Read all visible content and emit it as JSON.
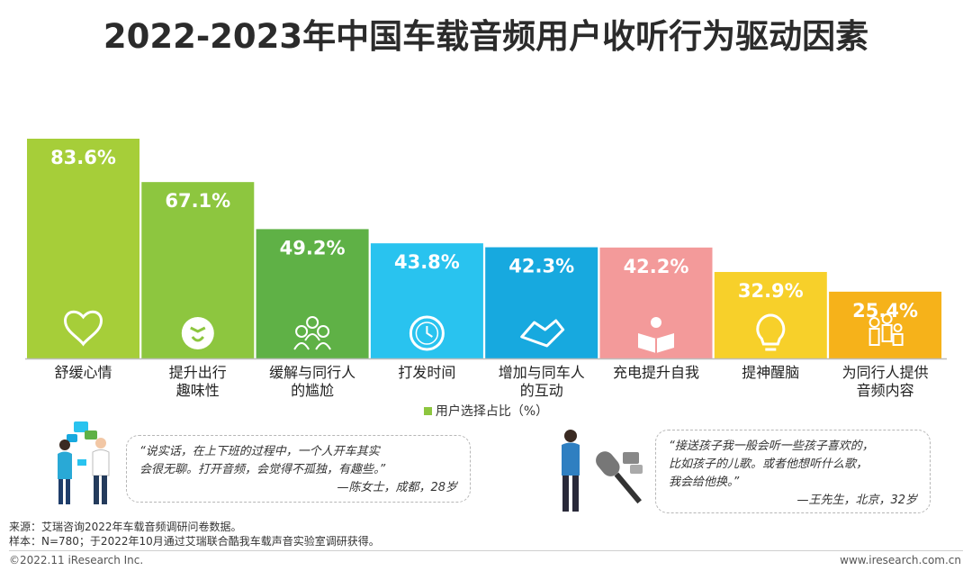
{
  "title": "2022-2023年中国车载音频用户收听行为驱动因素",
  "chart_data": {
    "type": "bar",
    "categories": [
      [
        "舒缓心情"
      ],
      [
        "提升出行",
        "趣味性"
      ],
      [
        "缓解与同行人",
        "的尴尬"
      ],
      [
        "打发时间"
      ],
      [
        "增加与同车人",
        "的互动"
      ],
      [
        "充电提升自我"
      ],
      [
        "提神醒脑"
      ],
      [
        "为同行人提供",
        "音频内容"
      ]
    ],
    "values": [
      83.6,
      67.1,
      49.2,
      43.8,
      42.3,
      42.2,
      32.9,
      25.4
    ],
    "value_labels": [
      "83.6%",
      "67.1%",
      "49.2%",
      "43.8%",
      "42.3%",
      "42.2%",
      "32.9%",
      "25.4%"
    ],
    "colors": [
      "#a6ce39",
      "#8dc63f",
      "#5fb146",
      "#29c3ef",
      "#17a9df",
      "#f39a9a",
      "#f7d02a",
      "#f6b21a"
    ],
    "icons": [
      "heart-icon",
      "joy-face-icon",
      "people-group-icon",
      "clock-icon",
      "handshake-icon",
      "reading-icon",
      "lightbulb-icon",
      "family-icon"
    ],
    "legend": "用户选择占比（%）",
    "ylim": [
      0,
      83.6
    ]
  },
  "quotes": {
    "left": {
      "lines": [
        "“说实话，在上下班的过程中，一个人开车其实",
        "会很无聊。打开音频，会觉得不孤独，有趣些。”"
      ],
      "author": "—陈女士，成都，28岁"
    },
    "right": {
      "lines": [
        "“接送孩子我一般会听一些孩子喜欢的，",
        "比如孩子的儿歌。或者他想听什么歌，",
        "我会给他换。”"
      ],
      "author": "—王先生，北京，32岁"
    }
  },
  "footer": {
    "source": "来源：艾瑞咨询2022年车载音频调研问卷数据。",
    "sample": "样本：N=780；于2022年10月通过艾瑞联合酷我车载声音实验室调研获得。",
    "copyright": "©2022.11 iResearch Inc.",
    "website": "www.iresearch.com.cn"
  }
}
